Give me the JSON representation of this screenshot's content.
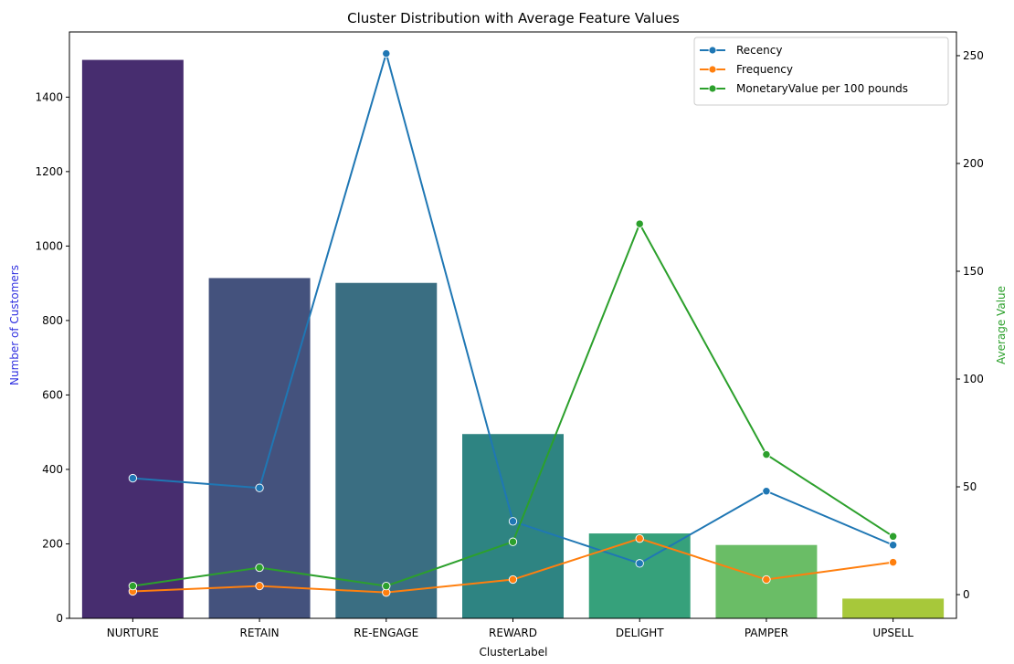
{
  "chart_data": {
    "type": "bar",
    "title": "Cluster Distribution with Average Feature Values",
    "xlabel": "ClusterLabel",
    "ylabel": "Number of Customers",
    "ylabel_color": "#3030e0",
    "y2label": "Average Value",
    "y2label_color": "#2ca02c",
    "categories": [
      "NURTURE",
      "RETAIN",
      "RE-ENGAGE",
      "REWARD",
      "DELIGHT",
      "PAMPER",
      "UPSELL"
    ],
    "bar_values": [
      1500,
      914,
      901,
      495,
      228,
      197,
      53
    ],
    "bar_colors": [
      "#472d6f",
      "#44527d",
      "#3a6e82",
      "#2e8482",
      "#36a17b",
      "#6abd66",
      "#a7c83a"
    ],
    "ylim": [
      0,
      1575
    ],
    "yticks": [
      0,
      200,
      400,
      600,
      800,
      1000,
      1200,
      1400
    ],
    "y2lim": [
      -11,
      261
    ],
    "y2ticks": [
      0,
      50,
      100,
      150,
      200,
      250
    ],
    "series": [
      {
        "name": "Recency",
        "color": "#1f77b4",
        "values": [
          54,
          49.5,
          251,
          34,
          14.5,
          48,
          23
        ]
      },
      {
        "name": "Frequency",
        "color": "#ff7f0e",
        "values": [
          1.5,
          4,
          1,
          7,
          26,
          7,
          15
        ]
      },
      {
        "name": "MonetaryValue per 100 pounds",
        "color": "#2ca02c",
        "values": [
          4,
          12.5,
          4,
          24.5,
          172,
          65,
          27
        ]
      }
    ],
    "legend_position": "top-right",
    "grid": false
  }
}
